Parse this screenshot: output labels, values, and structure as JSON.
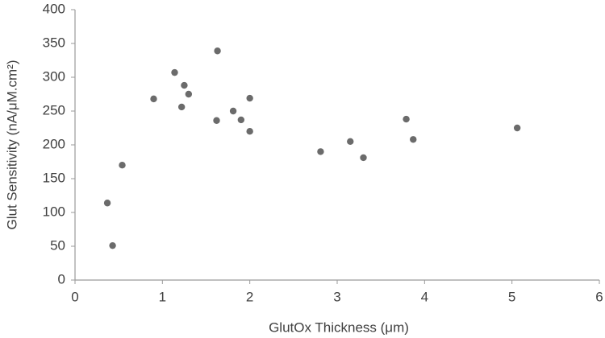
{
  "chart_data": {
    "type": "scatter",
    "x_label": "GlutOx Thickness (μm)",
    "y_label": "Glut Sensitivity (nA/μM.cm²)",
    "x": [
      0.37,
      0.43,
      0.54,
      0.9,
      1.14,
      1.25,
      1.22,
      1.3,
      1.63,
      1.62,
      1.81,
      1.9,
      2.0,
      2.0,
      2.81,
      3.15,
      3.3,
      3.79,
      3.87,
      5.06
    ],
    "values": [
      114,
      51,
      170,
      268,
      307,
      288,
      256,
      275,
      339,
      236,
      250,
      237,
      269,
      220,
      190,
      205,
      181,
      238,
      208,
      225
    ],
    "color": "#6b6b6b",
    "xlim": [
      0,
      6
    ],
    "xticks": [
      0,
      1,
      2,
      3,
      4,
      5,
      6
    ],
    "ylim": [
      0,
      400
    ],
    "yticks": [
      0,
      50,
      100,
      150,
      200,
      250,
      300,
      350,
      400
    ],
    "grid": false
  }
}
